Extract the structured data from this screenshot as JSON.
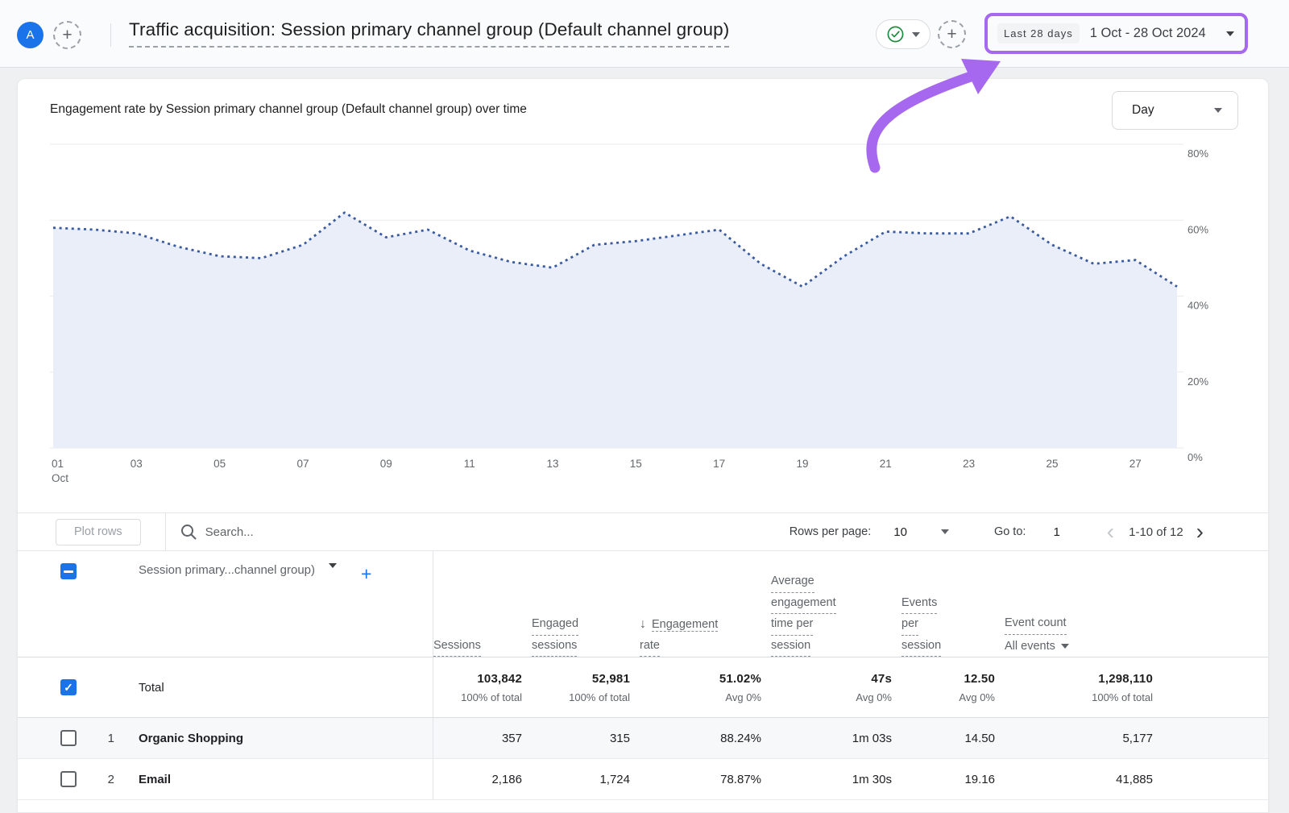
{
  "appbar": {
    "avatar_letter": "A",
    "title": "Traffic acquisition: Session primary channel group (Default channel group)",
    "date_preset": "Last 28 days",
    "date_range": "1 Oct - 28 Oct 2024"
  },
  "annotation": {
    "highlight_color": "#a568ef"
  },
  "chart": {
    "title": "Engagement rate by Session primary channel group (Default channel group) over time",
    "granularity": "Day"
  },
  "chart_data": {
    "type": "area",
    "title": "Engagement rate by Session primary channel group (Default channel group) over time",
    "x_month": "Oct",
    "tick_days": [
      1,
      3,
      5,
      7,
      9,
      11,
      13,
      15,
      17,
      19,
      21,
      23,
      25,
      27
    ],
    "tick_labels": [
      "01",
      "03",
      "05",
      "07",
      "09",
      "11",
      "13",
      "15",
      "17",
      "19",
      "21",
      "23",
      "25",
      "27"
    ],
    "series": [
      {
        "name": "Engagement rate",
        "values": [
          58,
          57.5,
          56.5,
          53,
          50.5,
          50,
          53.5,
          62,
          55.5,
          57.5,
          52,
          49,
          47.5,
          53.5,
          54.5,
          56,
          57.5,
          48.5,
          42.5,
          50.5,
          57,
          56.5,
          56.5,
          61,
          53.5,
          48.5,
          49.5,
          42.5
        ]
      }
    ],
    "ylim": [
      0,
      80
    ],
    "ytick_labels": [
      "0%",
      "20%",
      "40%",
      "60%",
      "80%"
    ],
    "grid": true,
    "legend_position": "none",
    "line_style": "dotted",
    "line_color": "#3a5a9f",
    "fill_color": "#e9eef8"
  },
  "table": {
    "controls": {
      "plot_rows": "Plot rows",
      "search_placeholder": "Search...",
      "rows_per_page_label": "Rows per page:",
      "rows_per_page_value": "10",
      "go_to_label": "Go to:",
      "go_to_value": "1",
      "pagination": "1-10 of 12"
    },
    "dimension_header": "Session primary...channel group)",
    "headers": {
      "sessions": [
        "Sessions"
      ],
      "engaged": [
        "Engaged",
        "sessions"
      ],
      "engagement_rate": [
        "Engagement",
        "rate"
      ],
      "avg_time": [
        "Average",
        "engagement",
        "time per",
        "session"
      ],
      "events_per_session": [
        "Events",
        "per",
        "session"
      ],
      "event_count": [
        "Event count"
      ],
      "event_count_filter": "All events"
    },
    "total": {
      "label": "Total",
      "sessions": "103,842",
      "sessions_sub": "100% of total",
      "engaged": "52,981",
      "engaged_sub": "100% of total",
      "engagement_rate": "51.02%",
      "engagement_rate_sub": "Avg 0%",
      "avg_time": "47s",
      "avg_time_sub": "Avg 0%",
      "events_per_session": "12.50",
      "events_per_session_sub": "Avg 0%",
      "event_count": "1,298,110",
      "event_count_sub": "100% of total"
    },
    "rows": [
      {
        "num": "1",
        "channel": "Organic Shopping",
        "sessions": "357",
        "engaged": "315",
        "engagement_rate": "88.24%",
        "avg_time": "1m 03s",
        "events_per_session": "14.50",
        "event_count": "5,177"
      },
      {
        "num": "2",
        "channel": "Email",
        "sessions": "2,186",
        "engaged": "1,724",
        "engagement_rate": "78.87%",
        "avg_time": "1m 30s",
        "events_per_session": "19.16",
        "event_count": "41,885"
      }
    ]
  }
}
